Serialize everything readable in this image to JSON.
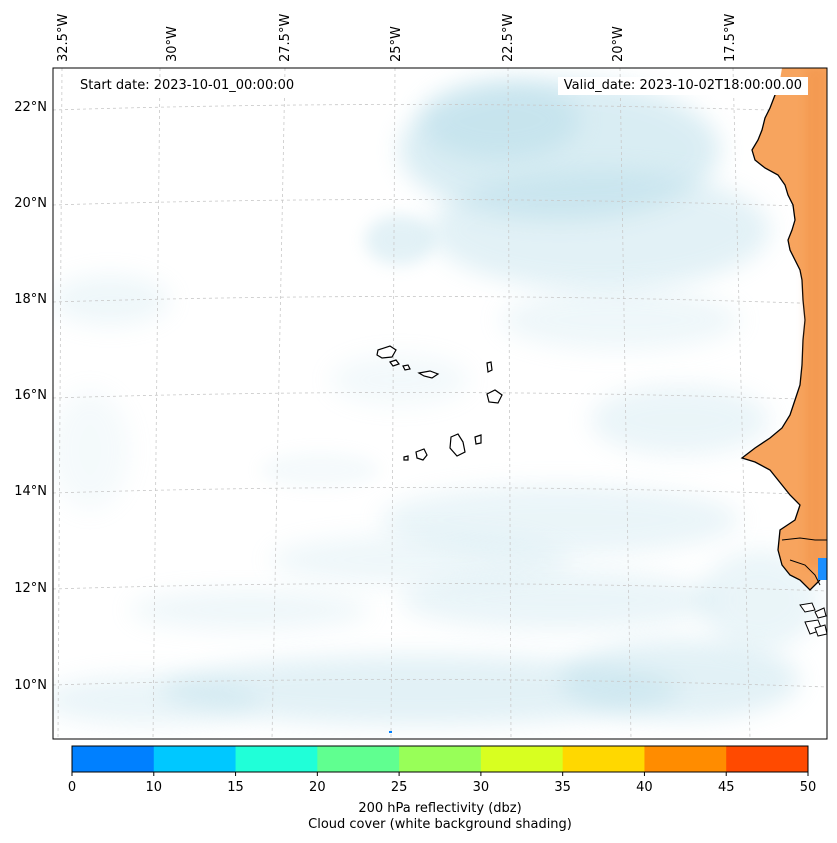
{
  "header": {
    "start_date": "Start date: 2023-10-01_00:00:00",
    "valid_date": "Valid_date: 2023-10-02T18:00:00.00"
  },
  "map": {
    "lon_labels": [
      "32.5°W",
      "30°W",
      "27.5°W",
      "25°W",
      "22.5°W",
      "20°W",
      "17.5°W"
    ],
    "lat_labels": [
      "22°N",
      "20°N",
      "18°N",
      "16°N",
      "14°N",
      "12°N",
      "10°N"
    ],
    "colors": {
      "land": "#f7a45e",
      "cloud": "#add8e6",
      "coast": "#000000",
      "grid": "#c8c8c8"
    }
  },
  "colorbar": {
    "ticks": [
      "0",
      "10",
      "15",
      "20",
      "25",
      "30",
      "35",
      "40",
      "45",
      "50"
    ],
    "colors": [
      "#0080ff",
      "#00c8ff",
      "#20ffd8",
      "#60ff90",
      "#98ff58",
      "#d8ff20",
      "#ffd800",
      "#ff8c00",
      "#ff4a00"
    ],
    "label_line1": "200 hPa reflectivity (dbz)",
    "label_line2": "Cloud cover (white background shading)"
  }
}
